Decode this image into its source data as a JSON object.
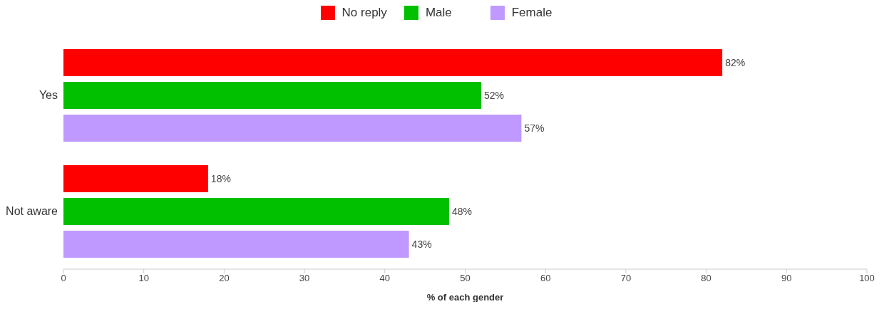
{
  "chart_data": {
    "type": "bar",
    "orientation": "horizontal",
    "categories": [
      "Yes",
      "Not aware"
    ],
    "series": [
      {
        "name": "No reply",
        "color": "#ff0000",
        "values": [
          82,
          18
        ],
        "value_labels": [
          "82%",
          "18%"
        ]
      },
      {
        "name": "Male",
        "color": "#00c000",
        "values": [
          52,
          48
        ],
        "value_labels": [
          "52%",
          "48%"
        ]
      },
      {
        "name": "Female",
        "color": "#bf99ff",
        "values": [
          57,
          43
        ],
        "value_labels": [
          "57%",
          "43%"
        ]
      }
    ],
    "xlabel": "% of each gender",
    "xlim": [
      0,
      100
    ],
    "xticks": [
      0,
      10,
      20,
      30,
      40,
      50,
      60,
      70,
      80,
      90,
      100
    ],
    "grid": false,
    "legend": "top"
  }
}
